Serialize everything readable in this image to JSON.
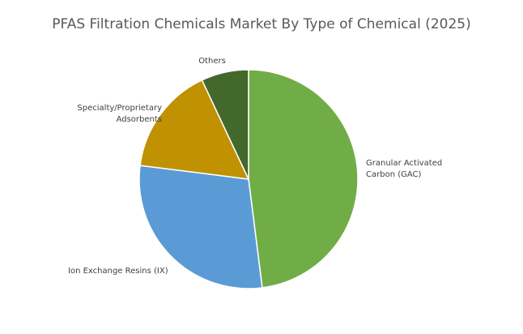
{
  "chart_data": {
    "type": "pie",
    "title": "PFAS Filtration Chemicals Market By Type of Chemical (2025)",
    "slices": [
      {
        "label": [
          "Granular Activated",
          "Carbon (GAC)"
        ],
        "value": 48,
        "color": "#70ad47"
      },
      {
        "label": [
          "Ion Exchange Resins (IX)"
        ],
        "value": 29,
        "color": "#5b9bd5"
      },
      {
        "label": [
          "Specialty/Proprietary",
          "Adsorbents"
        ],
        "value": 16,
        "color": "#c09100"
      },
      {
        "label": [
          "Others"
        ],
        "value": 7,
        "color": "#43682b"
      }
    ],
    "legend": "none"
  }
}
